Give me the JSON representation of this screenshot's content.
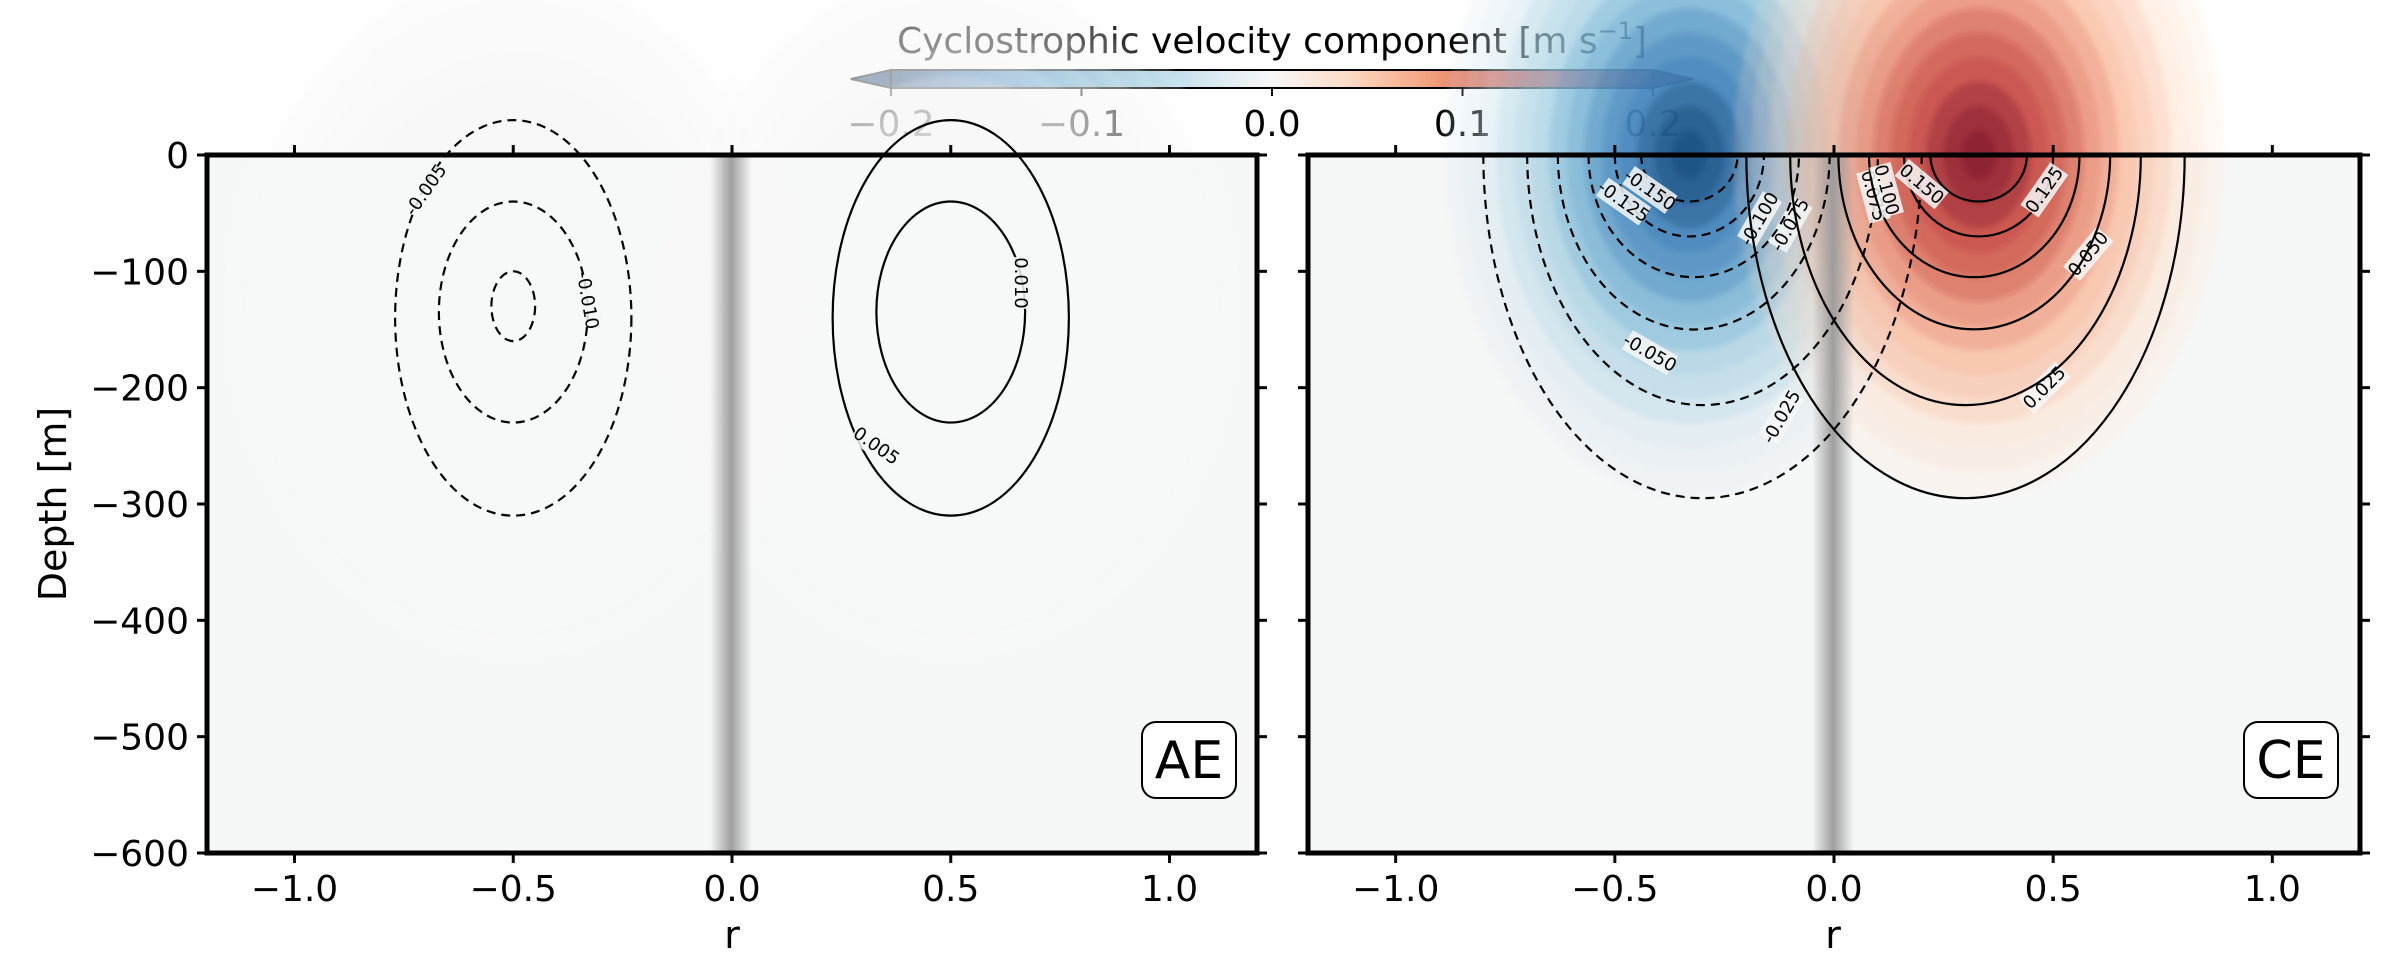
{
  "chart_data": {
    "type": "heatmap",
    "colorbar": {
      "title": "Cyclostrophic velocity component [m s",
      "title_sup": "−1",
      "title_end": "]",
      "ticks": [
        -0.2,
        -0.1,
        0.0,
        0.1,
        0.2
      ],
      "tick_labels": [
        "−0.2",
        "−0.1",
        "0.0",
        "0.1",
        "0.2"
      ],
      "range": [
        -0.2,
        0.2
      ],
      "colormap": "RdBu_r",
      "colors": [
        "#053061",
        "#2166ac",
        "#4393c3",
        "#92c5de",
        "#d1e5f0",
        "#f7f7f7",
        "#fddbc7",
        "#f4a582",
        "#d6604d",
        "#b2182b",
        "#67001f"
      ]
    },
    "ylabel": "Depth [m]",
    "ylim": [
      -600,
      0
    ],
    "yticks": [
      0,
      -100,
      -200,
      -300,
      -400,
      -500,
      -600
    ],
    "ytick_labels": [
      "0",
      "−100",
      "−200",
      "−300",
      "−400",
      "−500",
      "−600"
    ],
    "xlim": [
      -1.2,
      1.2
    ],
    "xticks": [
      -1.0,
      -0.5,
      0.0,
      0.5,
      1.0
    ],
    "xtick_labels": [
      "−1.0",
      "−0.5",
      "0.0",
      "0.5",
      "1.0"
    ],
    "panels": [
      {
        "name": "AE",
        "label": "AE",
        "xlabel": "r",
        "field": {
          "peak": 0.012,
          "r0": 0.5,
          "z0": -130,
          "sr": 0.24,
          "sz": 110
        },
        "contours": [
          {
            "level": -0.005,
            "r0": -0.5,
            "z0": -140,
            "a": 0.27,
            "b": 170,
            "label": "-0.005",
            "lr": -0.7,
            "lz": -30,
            "rot": -55
          },
          {
            "level": -0.01,
            "r0": -0.5,
            "z0": -135,
            "a": 0.17,
            "b": 95,
            "label": "-0.010",
            "lr": -0.33,
            "lz": -125,
            "rot": 80
          },
          {
            "level": -0.015,
            "r0": -0.5,
            "z0": -130,
            "a": 0.05,
            "b": 30,
            "label": "",
            "lr": 0,
            "lz": 0,
            "rot": 0
          },
          {
            "level": 0.005,
            "r0": 0.5,
            "z0": -140,
            "a": 0.27,
            "b": 170,
            "label": "0.005",
            "lr": 0.33,
            "lz": -250,
            "rot": 35
          },
          {
            "level": 0.01,
            "r0": 0.5,
            "z0": -135,
            "a": 0.17,
            "b": 95,
            "label": "0.010",
            "lr": 0.66,
            "lz": -110,
            "rot": 90
          }
        ]
      },
      {
        "name": "CE",
        "label": "CE",
        "xlabel": "r",
        "field": {
          "peak": 0.2,
          "r0": 0.33,
          "z0": 0,
          "sr": 0.2,
          "sz": 105
        },
        "contours": [
          {
            "level": -0.025,
            "r0": -0.3,
            "z0": 0,
            "a": 0.5,
            "b": 295,
            "label": "-0.025",
            "lr": -0.12,
            "lz": -225,
            "rot": -60
          },
          {
            "level": -0.05,
            "r0": -0.3,
            "z0": 0,
            "a": 0.4,
            "b": 215,
            "label": "-0.050",
            "lr": -0.42,
            "lz": -170,
            "rot": 30
          },
          {
            "level": -0.075,
            "r0": -0.32,
            "z0": 0,
            "a": 0.31,
            "b": 150,
            "label": "-0.075",
            "lr": -0.1,
            "lz": -60,
            "rot": -60
          },
          {
            "level": -0.1,
            "r0": -0.32,
            "z0": 0,
            "a": 0.24,
            "b": 105,
            "label": "-0.100",
            "lr": -0.17,
            "lz": -55,
            "rot": -60
          },
          {
            "level": -0.125,
            "r0": -0.33,
            "z0": 0,
            "a": 0.17,
            "b": 70,
            "label": "-0.125",
            "lr": -0.48,
            "lz": -40,
            "rot": 35
          },
          {
            "level": -0.15,
            "r0": -0.33,
            "z0": 0,
            "a": 0.11,
            "b": 40,
            "label": "-0.150",
            "lr": -0.42,
            "lz": -30,
            "rot": 35
          },
          {
            "level": 0.025,
            "r0": 0.3,
            "z0": 0,
            "a": 0.5,
            "b": 295,
            "label": "0.025",
            "lr": 0.48,
            "lz": -200,
            "rot": -45
          },
          {
            "level": 0.05,
            "r0": 0.3,
            "z0": 0,
            "a": 0.4,
            "b": 215,
            "label": "0.050",
            "lr": 0.58,
            "lz": -85,
            "rot": -50
          },
          {
            "level": 0.075,
            "r0": 0.32,
            "z0": 0,
            "a": 0.31,
            "b": 150,
            "label": "0.075",
            "lr": 0.09,
            "lz": -35,
            "rot": 75
          },
          {
            "level": 0.1,
            "r0": 0.32,
            "z0": 0,
            "a": 0.24,
            "b": 105,
            "label": "0.100",
            "lr": 0.12,
            "lz": -30,
            "rot": 75
          },
          {
            "level": 0.125,
            "r0": 0.33,
            "z0": 0,
            "a": 0.17,
            "b": 70,
            "label": "0.125",
            "lr": 0.48,
            "lz": -30,
            "rot": -55
          },
          {
            "level": 0.15,
            "r0": 0.33,
            "z0": 0,
            "a": 0.11,
            "b": 40,
            "label": "0.150",
            "lr": 0.2,
            "lz": -25,
            "rot": 40
          }
        ]
      }
    ]
  }
}
